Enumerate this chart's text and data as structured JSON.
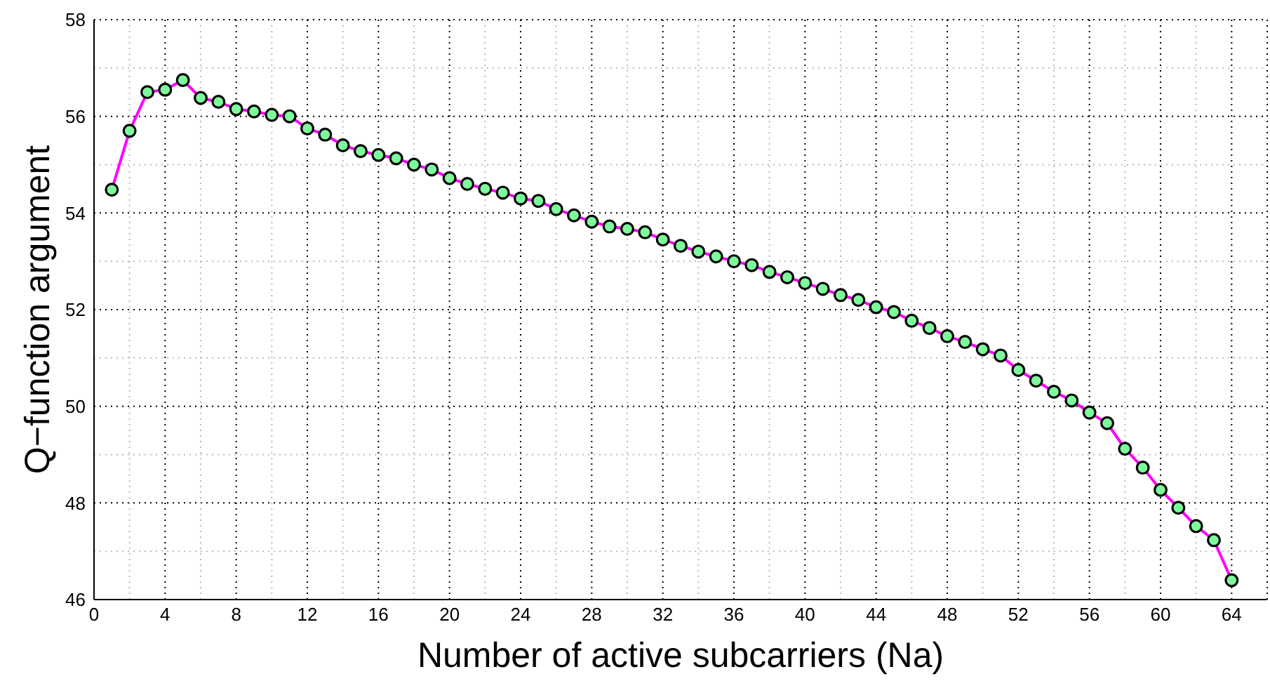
{
  "chart_data": {
    "type": "line",
    "xlabel": "Number of active subcarriers (Na)",
    "ylabel": "Q−function argument",
    "x": [
      1,
      2,
      3,
      4,
      5,
      6,
      7,
      8,
      9,
      10,
      11,
      12,
      13,
      14,
      15,
      16,
      17,
      18,
      19,
      20,
      21,
      22,
      23,
      24,
      25,
      26,
      27,
      28,
      29,
      30,
      31,
      32,
      33,
      34,
      35,
      36,
      37,
      38,
      39,
      40,
      41,
      42,
      43,
      44,
      45,
      46,
      47,
      48,
      49,
      50,
      51,
      52,
      53,
      54,
      55,
      56,
      57,
      58,
      59,
      60,
      61,
      62,
      63,
      64
    ],
    "series": [
      {
        "color": "#ff00ff",
        "values": [
          54.48,
          55.7,
          56.5,
          56.55,
          56.75,
          56.38,
          56.3,
          56.15,
          56.1,
          56.03,
          56.0,
          55.75,
          55.62,
          55.4,
          55.28,
          55.2,
          55.13,
          55.0,
          54.9,
          54.72,
          54.6,
          54.5,
          54.42,
          54.3,
          54.25,
          54.08,
          53.95,
          53.82,
          53.72,
          53.67,
          53.6,
          53.45,
          53.32,
          53.2,
          53.1,
          53.0,
          52.92,
          52.78,
          52.67,
          52.55,
          52.43,
          52.3,
          52.2,
          52.05,
          51.95,
          51.77,
          51.62,
          51.45,
          51.33,
          51.18,
          51.05,
          50.75,
          50.53,
          50.3,
          50.12,
          49.87,
          49.65,
          49.12,
          48.73,
          48.27,
          47.9,
          47.52,
          47.23,
          46.4
        ]
      }
    ],
    "xlim": [
      0,
      66
    ],
    "xticks": [
      0,
      4,
      8,
      12,
      16,
      20,
      24,
      28,
      32,
      36,
      40,
      44,
      48,
      52,
      56,
      60,
      64
    ],
    "ylim": [
      46,
      58
    ],
    "yticks": [
      46,
      48,
      50,
      52,
      54,
      56,
      58
    ],
    "grid": true,
    "marker": "circle",
    "line_style": "solid"
  }
}
